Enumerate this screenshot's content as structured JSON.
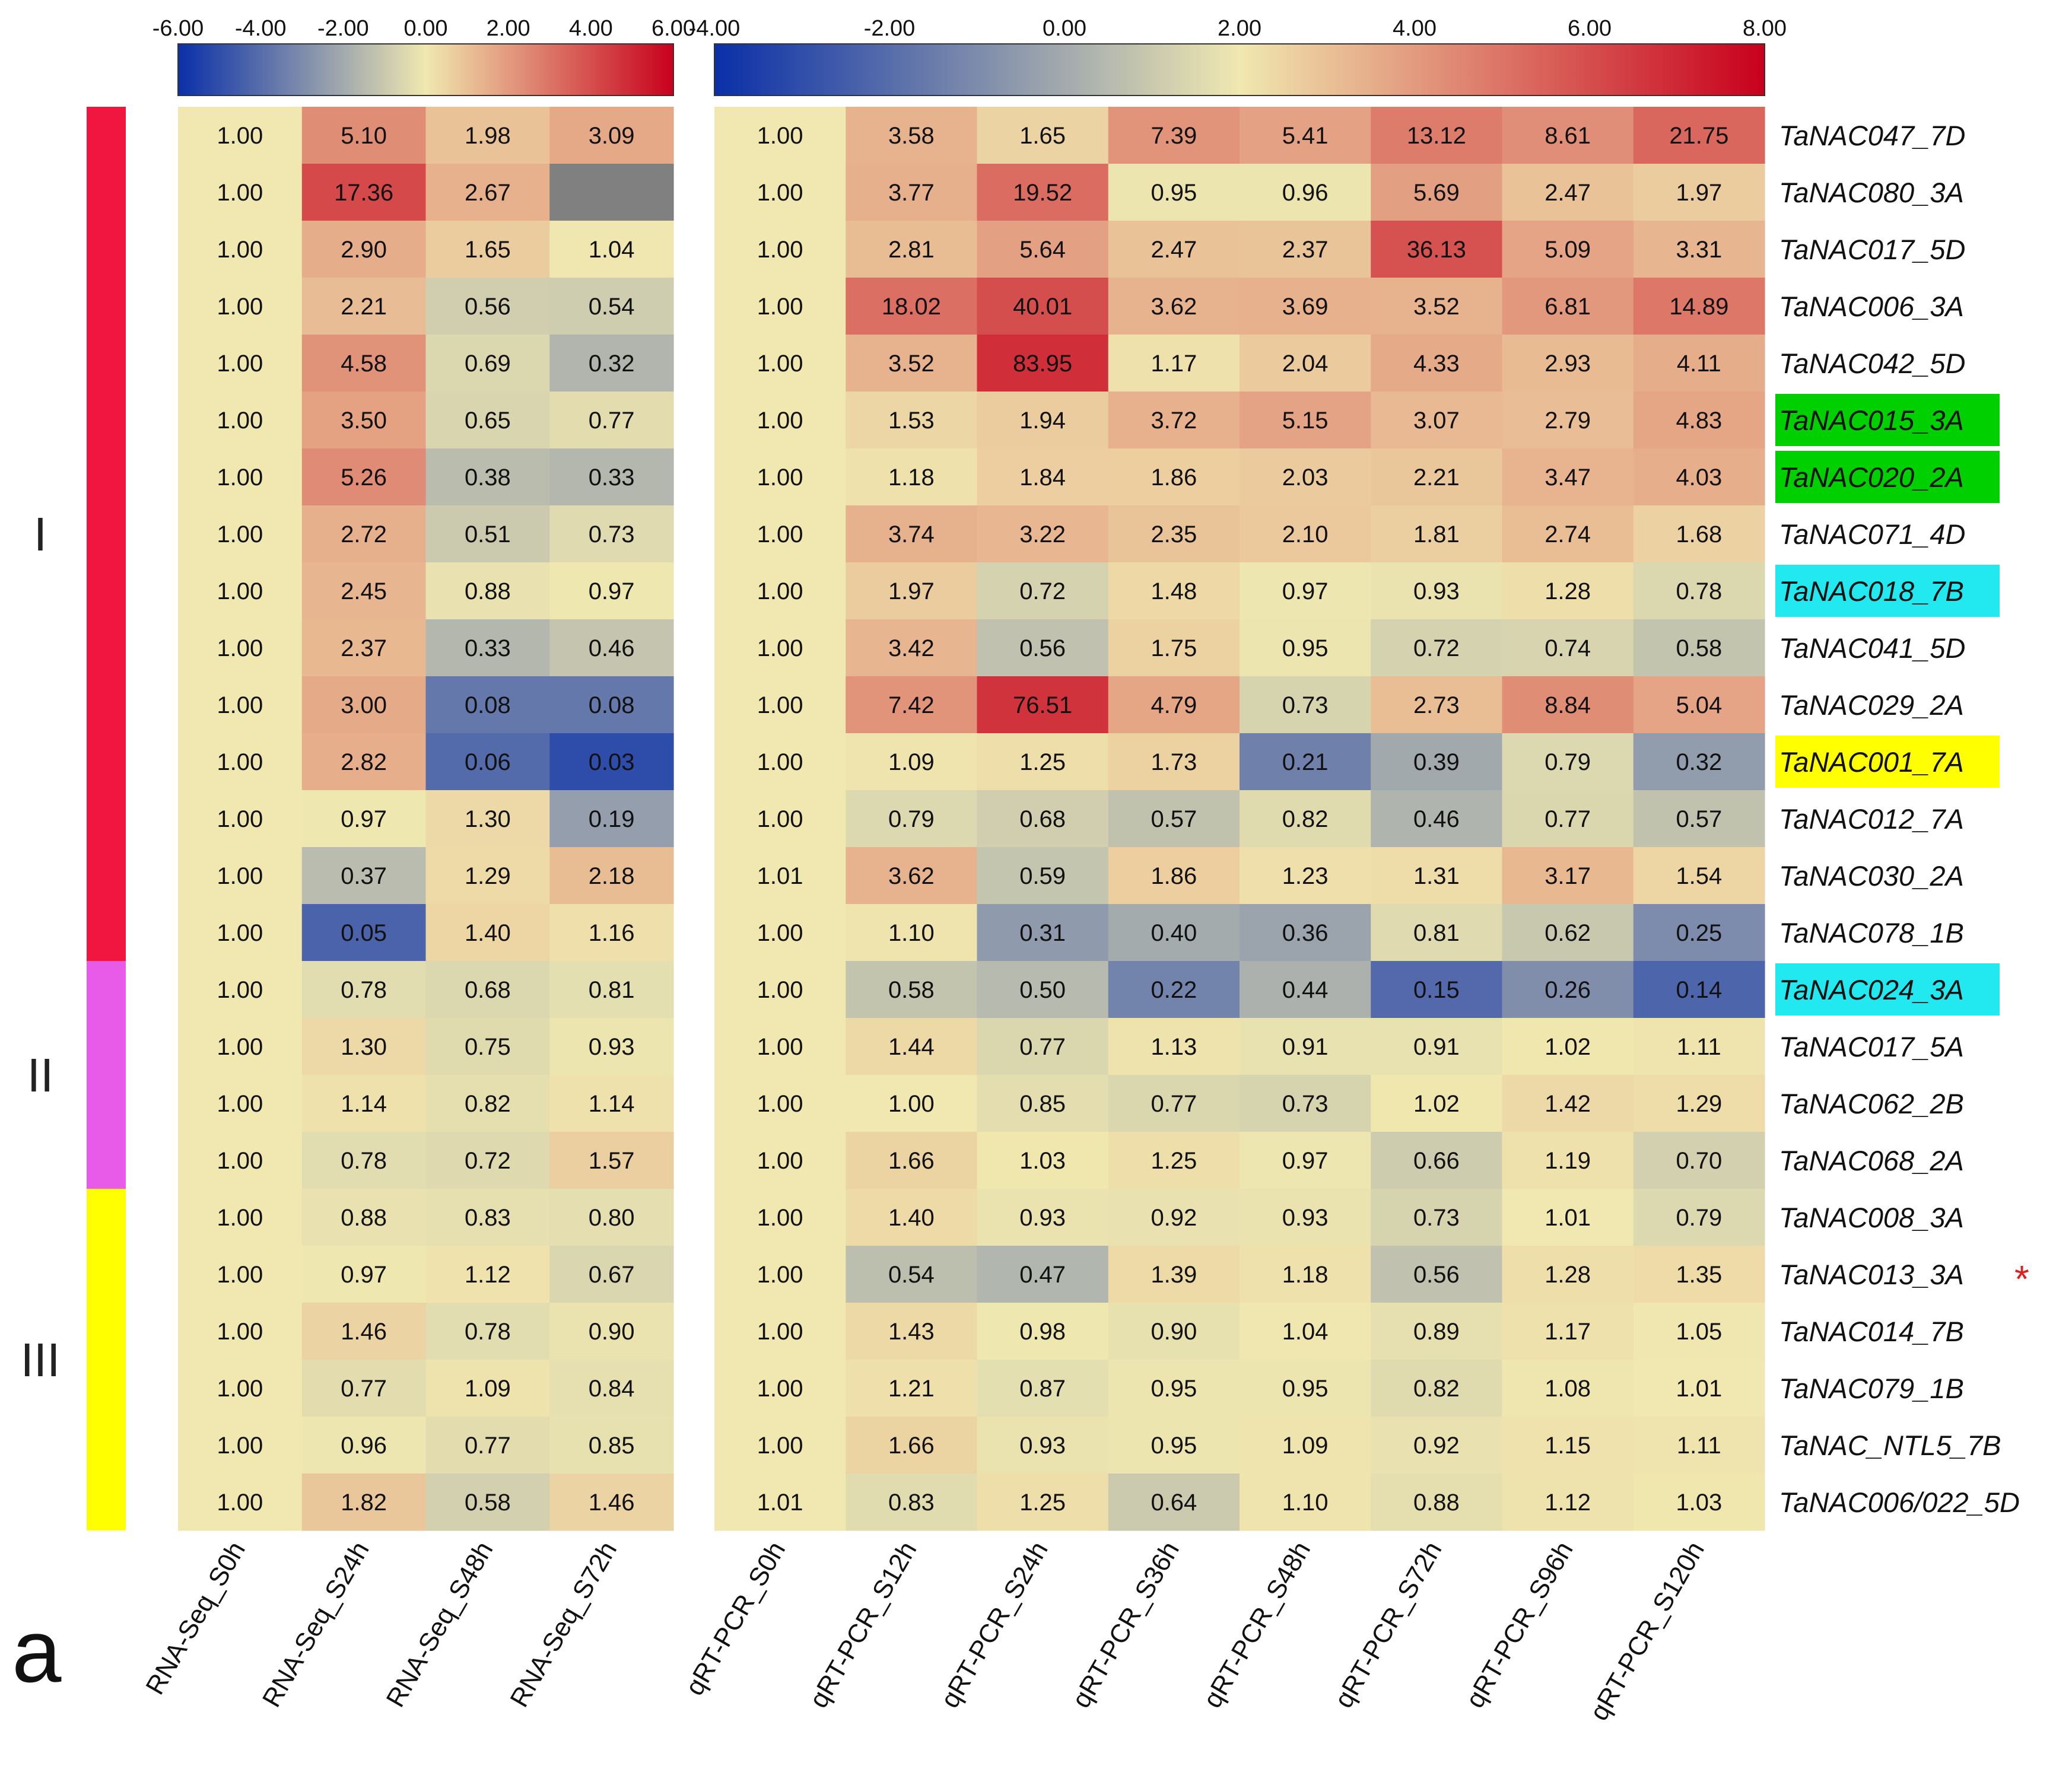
{
  "panel_label": "a",
  "marker": "*",
  "chart_data": {
    "type": "heatmap",
    "title": "",
    "description_free": true,
    "panels": [
      {
        "name": "RNA-Seq",
        "columns": [
          "RNA-Seq_S0h",
          "RNA-Seq_S24h",
          "RNA-Seq_S48h",
          "RNA-Seq_S72h"
        ],
        "scale": {
          "min": -6.0,
          "max": 6.0,
          "ticks": [
            "-6.00",
            "-4.00",
            "-2.00",
            "0.00",
            "2.00",
            "4.00",
            "6.00"
          ],
          "tick_values": [
            -6,
            -4,
            -2,
            0,
            2,
            4,
            6
          ]
        }
      },
      {
        "name": "qRT-PCR",
        "columns": [
          "qRT-PCR_S0h",
          "qRT-PCR_S12h",
          "qRT-PCR_S24h",
          "qRT-PCR_S36h",
          "qRT-PCR_S48h",
          "qRT-PCR_S72h",
          "qRT-PCR_S96h",
          "qRT-PCR_S120h"
        ],
        "scale": {
          "min": -4.0,
          "max": 8.0,
          "ticks": [
            "-4.00",
            "-2.00",
            "0.00",
            "2.00",
            "4.00",
            "6.00",
            "8.00"
          ],
          "tick_values": [
            -4,
            -2,
            0,
            2,
            4,
            6,
            8
          ]
        }
      }
    ],
    "color_scale": [
      "#0a2fa8",
      "#f0e8b0",
      "#c8001c"
    ],
    "missing_color": "#808080",
    "groups": [
      {
        "label": "I",
        "color": "#f01640",
        "rows": 15
      },
      {
        "label": "II",
        "color": "#e85ae8",
        "rows": 4
      },
      {
        "label": "III",
        "color": "#ffff00",
        "rows": 6
      }
    ],
    "rows": [
      {
        "gene": "TaNAC047_7D",
        "highlight": null,
        "marker": false,
        "rna": [
          "1.00",
          "5.10",
          "1.98",
          "3.09"
        ],
        "qpcr": [
          "1.00",
          "3.58",
          "1.65",
          "7.39",
          "5.41",
          "13.12",
          "8.61",
          "21.75"
        ]
      },
      {
        "gene": "TaNAC080_3A",
        "highlight": null,
        "marker": false,
        "rna": [
          "1.00",
          "17.36",
          "2.67",
          null
        ],
        "qpcr": [
          "1.00",
          "3.77",
          "19.52",
          "0.95",
          "0.96",
          "5.69",
          "2.47",
          "1.97"
        ]
      },
      {
        "gene": "TaNAC017_5D",
        "highlight": null,
        "marker": false,
        "rna": [
          "1.00",
          "2.90",
          "1.65",
          "1.04"
        ],
        "qpcr": [
          "1.00",
          "2.81",
          "5.64",
          "2.47",
          "2.37",
          "36.13",
          "5.09",
          "3.31"
        ]
      },
      {
        "gene": "TaNAC006_3A",
        "highlight": null,
        "marker": false,
        "rna": [
          "1.00",
          "2.21",
          "0.56",
          "0.54"
        ],
        "qpcr": [
          "1.00",
          "18.02",
          "40.01",
          "3.62",
          "3.69",
          "3.52",
          "6.81",
          "14.89"
        ]
      },
      {
        "gene": "TaNAC042_5D",
        "highlight": null,
        "marker": false,
        "rna": [
          "1.00",
          "4.58",
          "0.69",
          "0.32"
        ],
        "qpcr": [
          "1.00",
          "3.52",
          "83.95",
          "1.17",
          "2.04",
          "4.33",
          "2.93",
          "4.11"
        ]
      },
      {
        "gene": "TaNAC015_3A",
        "highlight": "#00d000",
        "marker": false,
        "rna": [
          "1.00",
          "3.50",
          "0.65",
          "0.77"
        ],
        "qpcr": [
          "1.00",
          "1.53",
          "1.94",
          "3.72",
          "5.15",
          "3.07",
          "2.79",
          "4.83"
        ]
      },
      {
        "gene": "TaNAC020_2A",
        "highlight": "#00d000",
        "marker": false,
        "rna": [
          "1.00",
          "5.26",
          "0.38",
          "0.33"
        ],
        "qpcr": [
          "1.00",
          "1.18",
          "1.84",
          "1.86",
          "2.03",
          "2.21",
          "3.47",
          "4.03"
        ]
      },
      {
        "gene": "TaNAC071_4D",
        "highlight": null,
        "marker": false,
        "rna": [
          "1.00",
          "2.72",
          "0.51",
          "0.73"
        ],
        "qpcr": [
          "1.00",
          "3.74",
          "3.22",
          "2.35",
          "2.10",
          "1.81",
          "2.74",
          "1.68"
        ]
      },
      {
        "gene": "TaNAC018_7B",
        "highlight": "#22e8f0",
        "marker": false,
        "rna": [
          "1.00",
          "2.45",
          "0.88",
          "0.97"
        ],
        "qpcr": [
          "1.00",
          "1.97",
          "0.72",
          "1.48",
          "0.97",
          "0.93",
          "1.28",
          "0.78"
        ]
      },
      {
        "gene": "TaNAC041_5D",
        "highlight": null,
        "marker": false,
        "rna": [
          "1.00",
          "2.37",
          "0.33",
          "0.46"
        ],
        "qpcr": [
          "1.00",
          "3.42",
          "0.56",
          "1.75",
          "0.95",
          "0.72",
          "0.74",
          "0.58"
        ]
      },
      {
        "gene": "TaNAC029_2A",
        "highlight": null,
        "marker": false,
        "rna": [
          "1.00",
          "3.00",
          "0.08",
          "0.08"
        ],
        "qpcr": [
          "1.00",
          "7.42",
          "76.51",
          "4.79",
          "0.73",
          "2.73",
          "8.84",
          "5.04"
        ]
      },
      {
        "gene": "TaNAC001_7A",
        "highlight": "#ffff00",
        "marker": false,
        "rna": [
          "1.00",
          "2.82",
          "0.06",
          "0.03"
        ],
        "qpcr": [
          "1.00",
          "1.09",
          "1.25",
          "1.73",
          "0.21",
          "0.39",
          "0.79",
          "0.32"
        ]
      },
      {
        "gene": "TaNAC012_7A",
        "highlight": null,
        "marker": false,
        "rna": [
          "1.00",
          "0.97",
          "1.30",
          "0.19"
        ],
        "qpcr": [
          "1.00",
          "0.79",
          "0.68",
          "0.57",
          "0.82",
          "0.46",
          "0.77",
          "0.57"
        ]
      },
      {
        "gene": "TaNAC030_2A",
        "highlight": null,
        "marker": false,
        "rna": [
          "1.00",
          "0.37",
          "1.29",
          "2.18"
        ],
        "qpcr": [
          "1.01",
          "3.62",
          "0.59",
          "1.86",
          "1.23",
          "1.31",
          "3.17",
          "1.54"
        ]
      },
      {
        "gene": "TaNAC078_1B",
        "highlight": null,
        "marker": false,
        "rna": [
          "1.00",
          "0.05",
          "1.40",
          "1.16"
        ],
        "qpcr": [
          "1.00",
          "1.10",
          "0.31",
          "0.40",
          "0.36",
          "0.81",
          "0.62",
          "0.25"
        ]
      },
      {
        "gene": "TaNAC024_3A",
        "highlight": "#22e8f0",
        "marker": false,
        "rna": [
          "1.00",
          "0.78",
          "0.68",
          "0.81"
        ],
        "qpcr": [
          "1.00",
          "0.58",
          "0.50",
          "0.22",
          "0.44",
          "0.15",
          "0.26",
          "0.14"
        ]
      },
      {
        "gene": "TaNAC017_5A",
        "highlight": null,
        "marker": false,
        "rna": [
          "1.00",
          "1.30",
          "0.75",
          "0.93"
        ],
        "qpcr": [
          "1.00",
          "1.44",
          "0.77",
          "1.13",
          "0.91",
          "0.91",
          "1.02",
          "1.11"
        ]
      },
      {
        "gene": "TaNAC062_2B",
        "highlight": null,
        "marker": false,
        "rna": [
          "1.00",
          "1.14",
          "0.82",
          "1.14"
        ],
        "qpcr": [
          "1.00",
          "1.00",
          "0.85",
          "0.77",
          "0.73",
          "1.02",
          "1.42",
          "1.29"
        ]
      },
      {
        "gene": "TaNAC068_2A",
        "highlight": null,
        "marker": false,
        "rna": [
          "1.00",
          "0.78",
          "0.72",
          "1.57"
        ],
        "qpcr": [
          "1.00",
          "1.66",
          "1.03",
          "1.25",
          "0.97",
          "0.66",
          "1.19",
          "0.70"
        ]
      },
      {
        "gene": "TaNAC008_3A",
        "highlight": null,
        "marker": false,
        "rna": [
          "1.00",
          "0.88",
          "0.83",
          "0.80"
        ],
        "qpcr": [
          "1.00",
          "1.40",
          "0.93",
          "0.92",
          "0.93",
          "0.73",
          "1.01",
          "0.79"
        ]
      },
      {
        "gene": "TaNAC013_3A",
        "highlight": null,
        "marker": true,
        "rna": [
          "1.00",
          "0.97",
          "1.12",
          "0.67"
        ],
        "qpcr": [
          "1.00",
          "0.54",
          "0.47",
          "1.39",
          "1.18",
          "0.56",
          "1.28",
          "1.35"
        ]
      },
      {
        "gene": "TaNAC014_7B",
        "highlight": null,
        "marker": false,
        "rna": [
          "1.00",
          "1.46",
          "0.78",
          "0.90"
        ],
        "qpcr": [
          "1.00",
          "1.43",
          "0.98",
          "0.90",
          "1.04",
          "0.89",
          "1.17",
          "1.05"
        ]
      },
      {
        "gene": "TaNAC079_1B",
        "highlight": null,
        "marker": false,
        "rna": [
          "1.00",
          "0.77",
          "1.09",
          "0.84"
        ],
        "qpcr": [
          "1.00",
          "1.21",
          "0.87",
          "0.95",
          "0.95",
          "0.82",
          "1.08",
          "1.01"
        ]
      },
      {
        "gene": "TaNAC_NTL5_7B",
        "highlight": null,
        "marker": false,
        "rna": [
          "1.00",
          "0.96",
          "0.77",
          "0.85"
        ],
        "qpcr": [
          "1.00",
          "1.66",
          "0.93",
          "0.95",
          "1.09",
          "0.92",
          "1.15",
          "1.11"
        ]
      },
      {
        "gene": "TaNAC006/022_5D",
        "highlight": null,
        "marker": false,
        "rna": [
          "1.00",
          "1.82",
          "0.58",
          "1.46"
        ],
        "qpcr": [
          "1.01",
          "0.83",
          "1.25",
          "0.64",
          "1.10",
          "0.88",
          "1.12",
          "1.03"
        ]
      }
    ]
  }
}
